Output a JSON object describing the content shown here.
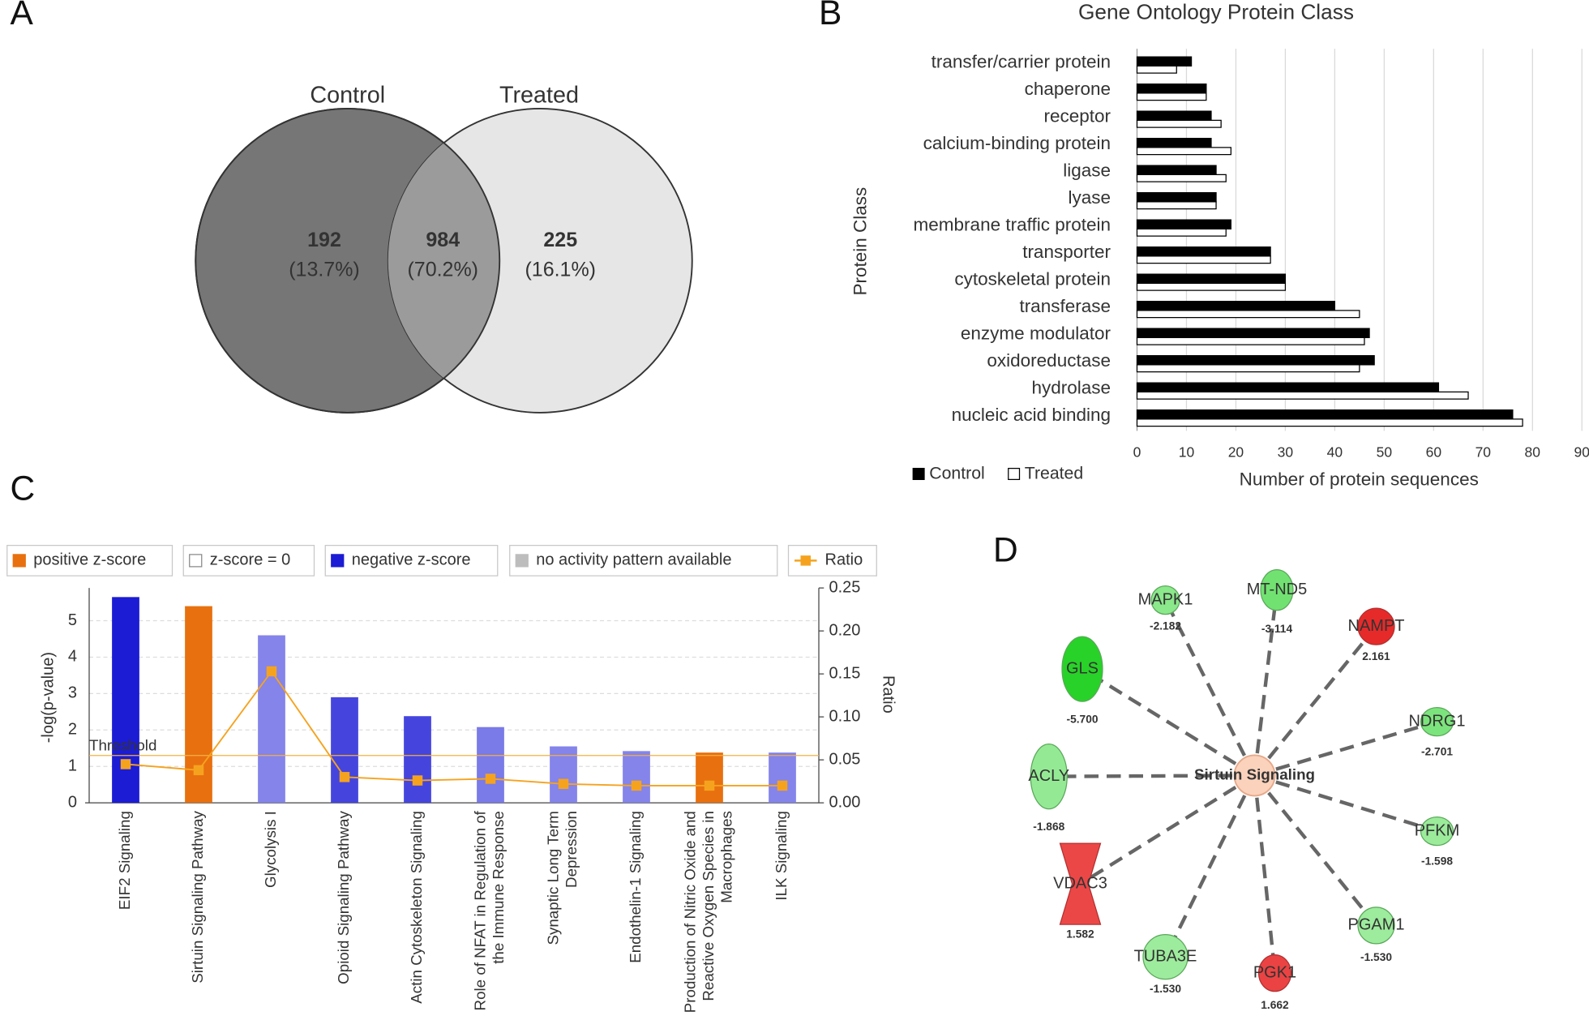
{
  "panel_labels": [
    "A",
    "B",
    "C",
    "D"
  ],
  "chart_data": [
    {
      "type": "venn",
      "sets": [
        {
          "name": "Control",
          "color": "#767676"
        },
        {
          "name": "Treated",
          "color": "#e6e6e6"
        }
      ],
      "overlap_color": "#9b9b9b",
      "values": [
        192,
        984,
        225
      ],
      "percent_labels": [
        "(13.7%)",
        "(70.2%)",
        "(16.1%)"
      ]
    },
    {
      "type": "bar",
      "orientation": "horizontal",
      "title": "Gene Ontology Protein Class",
      "xlabel": "Number of protein sequences",
      "ylabel": "Protein Class",
      "categories": [
        "transfer/carrier protein",
        "chaperone",
        "receptor",
        "calcium-binding protein",
        "ligase",
        "lyase",
        "membrane traffic protein",
        "transporter",
        "cytoskeletal protein",
        "transferase",
        "enzyme modulator",
        "oxidoreductase",
        "hydrolase",
        "nucleic acid binding"
      ],
      "series": [
        {
          "name": "Control",
          "color": "#000000",
          "values": [
            11,
            14,
            15,
            15,
            16,
            16,
            19,
            27,
            30,
            40,
            47,
            48,
            61,
            76
          ]
        },
        {
          "name": "Treated",
          "color": "#ffffff",
          "values": [
            8,
            14,
            17,
            19,
            18,
            16,
            18,
            27,
            30,
            45,
            46,
            45,
            67,
            78
          ]
        }
      ],
      "xlim": [
        0,
        90
      ],
      "xticks": [
        0,
        10,
        20,
        30,
        40,
        50,
        60,
        70,
        80,
        90
      ],
      "grid": true,
      "legend": "bottom-left"
    },
    {
      "type": "bar",
      "ylabel": "-log(p-value)",
      "y2label": "Ratio",
      "categories": [
        [
          "EIF2 Signaling"
        ],
        [
          "Sirtuin Signaling Pathway"
        ],
        [
          "Glycolysis I"
        ],
        [
          "Opioid Signaling Pathway"
        ],
        [
          "Actin Cytoskeleton Signaling"
        ],
        [
          "Role of NFAT in Regulation of",
          "the Immune Response"
        ],
        [
          "Synaptic Long Term",
          "Depression"
        ],
        [
          "Endothelin-1 Signaling"
        ],
        [
          "Production of Nitric Oxide and",
          "Reactive Oxygen Species in",
          "Macrophages"
        ],
        [
          "ILK Signaling"
        ]
      ],
      "values": [
        5.65,
        5.4,
        4.6,
        2.9,
        2.38,
        2.08,
        1.55,
        1.42,
        1.38,
        1.38
      ],
      "colors": [
        "#1c1cd4",
        "#e8700f",
        "#8484ea",
        "#4545de",
        "#4545de",
        "#7a7ae8",
        "#8484ea",
        "#8484ea",
        "#e8700f",
        "#8484ea"
      ],
      "line": {
        "name": "Ratio",
        "color": "#f5a31f",
        "axis": "y2",
        "values": [
          0.045,
          0.038,
          0.153,
          0.03,
          0.026,
          0.028,
          0.022,
          0.02,
          0.02,
          0.02
        ]
      },
      "threshold": {
        "value": 1.3,
        "label": "Threshold",
        "color": "#f5b041"
      },
      "legend_items": [
        {
          "name": "positive z-score",
          "color": "#e8700f"
        },
        {
          "name": "z-score = 0",
          "color": "#ffffff"
        },
        {
          "name": "negative z-score",
          "color": "#1c1cd4"
        },
        {
          "name": "no activity pattern available",
          "color": "#bdbdbd"
        }
      ],
      "ylim": [
        0,
        5.9
      ],
      "yticks": [
        0,
        1,
        2,
        3,
        4,
        5
      ],
      "y2lim": [
        0,
        0.25
      ],
      "y2ticks": [
        {
          "value": 0,
          "label": "0.00"
        },
        {
          "value": 0.05,
          "label": "0.05"
        },
        {
          "value": 0.1,
          "label": "0.10"
        },
        {
          "value": 0.15,
          "label": "0.15"
        },
        {
          "value": 0.2,
          "label": "0.20"
        },
        {
          "value": 0.25,
          "label": "0.25"
        }
      ],
      "grid": true
    },
    {
      "type": "network",
      "center": "Sirtuin Signaling",
      "nodes": [
        {
          "name": "MAPK1",
          "value": -2.182,
          "value_label": "-2.182"
        },
        {
          "name": "MT-ND5",
          "value": -3.114,
          "value_label": "-3.114"
        },
        {
          "name": "NAMPT",
          "value": 2.161,
          "value_label": "2.161"
        },
        {
          "name": "NDRG1",
          "value": -2.701,
          "value_label": "-2.701"
        },
        {
          "name": "PFKM",
          "value": -1.598,
          "value_label": "-1.598"
        },
        {
          "name": "PGAM1",
          "value": -1.53,
          "value_label": "-1.530"
        },
        {
          "name": "PGK1",
          "value": 1.662,
          "value_label": "1.662"
        },
        {
          "name": "TUBA3E",
          "value": -1.53,
          "value_label": "-1.530"
        },
        {
          "name": "VDAC3",
          "value": 1.582,
          "value_label": "1.582"
        },
        {
          "name": "ACLY",
          "value": -1.868,
          "value_label": "-1.868"
        },
        {
          "name": "GLS",
          "value": -5.7,
          "value_label": "-5.700"
        }
      ]
    }
  ]
}
